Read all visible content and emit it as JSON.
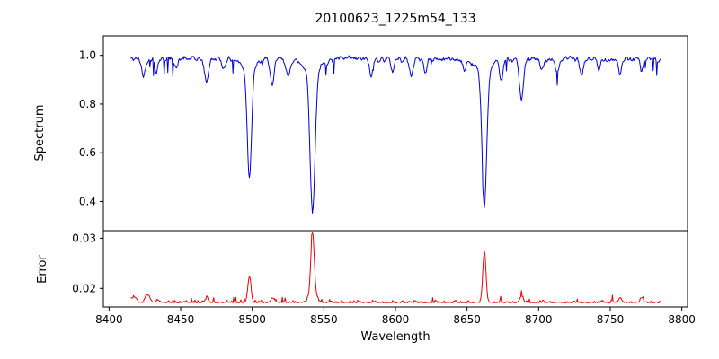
{
  "chart_data": {
    "type": "line",
    "title": "20100623_1225m54_133",
    "xlabel": "Wavelength",
    "xlim": [
      8396,
      8804
    ],
    "x_start": 8415,
    "x_end": 8785,
    "x_step": 0.5,
    "seed": 42,
    "grid": false,
    "legend": "none",
    "x_ticks": [
      {
        "v": 8400,
        "label": "8400"
      },
      {
        "v": 8450,
        "label": "8450"
      },
      {
        "v": 8500,
        "label": "8500"
      },
      {
        "v": 8550,
        "label": "8550"
      },
      {
        "v": 8600,
        "label": "8600"
      },
      {
        "v": 8650,
        "label": "8650"
      },
      {
        "v": 8700,
        "label": "8700"
      },
      {
        "v": 8750,
        "label": "8750"
      },
      {
        "v": 8800,
        "label": "8800"
      }
    ],
    "panels": [
      {
        "name": "spectrum",
        "ylabel": "Spectrum",
        "line_color": "#0000dd",
        "ylim": [
          0.28,
          1.08
        ],
        "y_ticks": [
          {
            "v": 0.4,
            "label": "0.4"
          },
          {
            "v": 0.6,
            "label": "0.6"
          },
          {
            "v": 0.8,
            "label": "0.8"
          },
          {
            "v": 1.0,
            "label": "1.0"
          }
        ],
        "continuum": 0.985,
        "noise_amplitude": 0.016,
        "spike_probability": 0.03,
        "spike_max_depth": 0.05,
        "absorption_lines": [
          {
            "center": 8498.0,
            "depth": 0.44,
            "sigma": 1.5
          },
          {
            "center": 8498.0,
            "depth": 0.04,
            "sigma": 5.0
          },
          {
            "center": 8542.1,
            "depth": 0.58,
            "sigma": 1.7
          },
          {
            "center": 8542.1,
            "depth": 0.05,
            "sigma": 6.0
          },
          {
            "center": 8662.1,
            "depth": 0.56,
            "sigma": 1.6
          },
          {
            "center": 8662.1,
            "depth": 0.05,
            "sigma": 6.0
          },
          {
            "center": 8424,
            "depth": 0.07,
            "sigma": 1.2
          },
          {
            "center": 8433,
            "depth": 0.05,
            "sigma": 1.0
          },
          {
            "center": 8447,
            "depth": 0.04,
            "sigma": 1.0
          },
          {
            "center": 8468,
            "depth": 0.09,
            "sigma": 1.4
          },
          {
            "center": 8480,
            "depth": 0.04,
            "sigma": 1.0
          },
          {
            "center": 8514,
            "depth": 0.12,
            "sigma": 1.2
          },
          {
            "center": 8525,
            "depth": 0.08,
            "sigma": 1.2
          },
          {
            "center": 8583,
            "depth": 0.07,
            "sigma": 1.2
          },
          {
            "center": 8598,
            "depth": 0.05,
            "sigma": 1.0
          },
          {
            "center": 8611,
            "depth": 0.07,
            "sigma": 1.2
          },
          {
            "center": 8621,
            "depth": 0.06,
            "sigma": 1.0
          },
          {
            "center": 8648,
            "depth": 0.05,
            "sigma": 1.0
          },
          {
            "center": 8674,
            "depth": 0.08,
            "sigma": 1.2
          },
          {
            "center": 8688,
            "depth": 0.17,
            "sigma": 1.4
          },
          {
            "center": 8702,
            "depth": 0.05,
            "sigma": 1.0
          },
          {
            "center": 8713,
            "depth": 0.06,
            "sigma": 1.2
          },
          {
            "center": 8730,
            "depth": 0.07,
            "sigma": 1.2
          },
          {
            "center": 8742,
            "depth": 0.05,
            "sigma": 1.0
          },
          {
            "center": 8757,
            "depth": 0.06,
            "sigma": 1.2
          },
          {
            "center": 8772,
            "depth": 0.05,
            "sigma": 1.0
          }
        ]
      },
      {
        "name": "error",
        "ylabel": "Error",
        "line_color": "#ee0000",
        "ylim": [
          0.0163,
          0.0315
        ],
        "y_ticks": [
          {
            "v": 0.02,
            "label": "0.02"
          },
          {
            "v": 0.03,
            "label": "0.03"
          }
        ],
        "baseline": 0.0171,
        "noise_amplitude": 0.00028,
        "emission_peaks": [
          {
            "center": 8416,
            "amp": 0.001,
            "sigma": 2.0
          },
          {
            "center": 8427,
            "amp": 0.0016,
            "sigma": 1.5
          },
          {
            "center": 8434,
            "amp": 0.0006,
            "sigma": 1.0
          },
          {
            "center": 8468,
            "amp": 0.0007,
            "sigma": 1.4
          },
          {
            "center": 8498.0,
            "amp": 0.0052,
            "sigma": 1.1
          },
          {
            "center": 8514,
            "amp": 0.001,
            "sigma": 1.0
          },
          {
            "center": 8542.1,
            "amp": 0.0128,
            "sigma": 1.2
          },
          {
            "center": 8542.1,
            "amp": 0.0012,
            "sigma": 3.0
          },
          {
            "center": 8662.1,
            "amp": 0.0102,
            "sigma": 1.1
          },
          {
            "center": 8688,
            "amp": 0.0013,
            "sigma": 1.2
          },
          {
            "center": 8757,
            "amp": 0.001,
            "sigma": 1.0
          },
          {
            "center": 8772,
            "amp": 0.0008,
            "sigma": 1.0
          }
        ]
      }
    ]
  }
}
